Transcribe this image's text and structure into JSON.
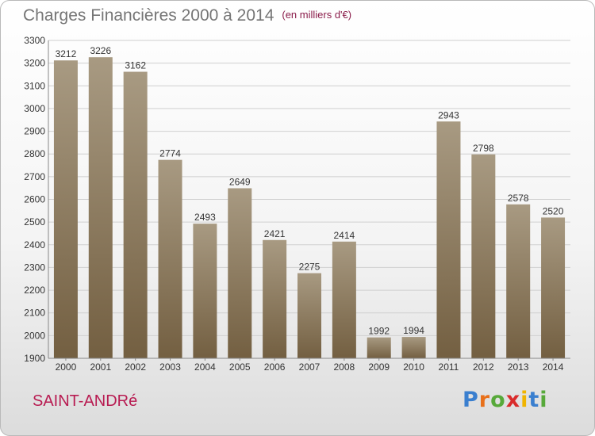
{
  "title": "Charges Financières 2000 à 2014",
  "unit": "(en milliers d'€)",
  "city": "SAINT-ANDRé",
  "logo": [
    "P",
    "r",
    "o",
    "x",
    "i",
    "t",
    "i"
  ],
  "logo_colors": [
    "#3a7fcf",
    "#e8701a",
    "#57a93a",
    "#d92b2b",
    "#f0b400",
    "#3a7fcf",
    "#57a93a"
  ],
  "bar_color": "#8b7a5e",
  "chart_data": {
    "type": "bar",
    "categories": [
      "2000",
      "2001",
      "2002",
      "2003",
      "2004",
      "2005",
      "2006",
      "2007",
      "2008",
      "2009",
      "2010",
      "2011",
      "2012",
      "2013",
      "2014"
    ],
    "values": [
      3212,
      3226,
      3162,
      2774,
      2493,
      2649,
      2421,
      2275,
      2414,
      1992,
      1994,
      2943,
      2798,
      2578,
      2520
    ],
    "ylim": [
      1900,
      3300
    ],
    "yticks": [
      1900,
      2000,
      2100,
      2200,
      2300,
      2400,
      2500,
      2600,
      2700,
      2800,
      2900,
      3000,
      3100,
      3200,
      3300
    ],
    "grid": true
  }
}
